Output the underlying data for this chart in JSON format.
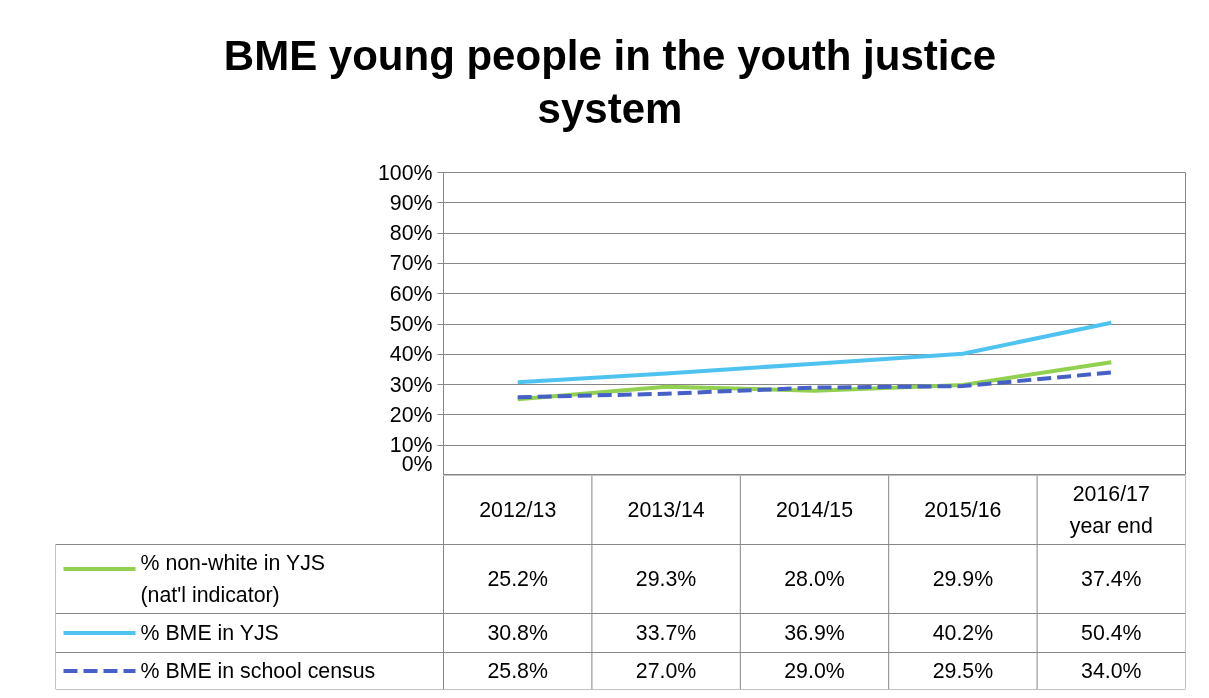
{
  "chart_data": {
    "type": "line",
    "title": "BME young people in the youth justice system",
    "categories": [
      "2012/13",
      "2013/14",
      "2014/15",
      "2015/16",
      "2016/17 year end"
    ],
    "ylim": [
      0,
      100
    ],
    "yticks": [
      {
        "value": 0,
        "label": "0%"
      },
      {
        "value": 10,
        "label": "10%"
      },
      {
        "value": 20,
        "label": "20%"
      },
      {
        "value": 30,
        "label": "30%"
      },
      {
        "value": 40,
        "label": "40%"
      },
      {
        "value": 50,
        "label": "50%"
      },
      {
        "value": 60,
        "label": "60%"
      },
      {
        "value": 70,
        "label": "70%"
      },
      {
        "value": 80,
        "label": "80%"
      },
      {
        "value": 90,
        "label": "90%"
      },
      {
        "value": 100,
        "label": "100%"
      }
    ],
    "grid": "y",
    "legend": "bottom",
    "marker": "none",
    "series": [
      {
        "name": "% non-white in YJS (nat'l indicator)",
        "color": "#92d050",
        "line_style": "solid",
        "values": [
          25.2,
          29.3,
          28.0,
          29.9,
          37.4
        ],
        "value_labels": [
          "25.2%",
          "29.3%",
          "28.0%",
          "29.9%",
          "37.4%"
        ]
      },
      {
        "name": "% BME in YJS",
        "color": "#4fc3ef",
        "line_style": "solid",
        "values": [
          30.8,
          33.7,
          36.9,
          40.2,
          50.4
        ],
        "value_labels": [
          "30.8%",
          "33.7%",
          "36.9%",
          "40.2%",
          "50.4%"
        ]
      },
      {
        "name": "% BME in school census",
        "color": "#4660c8",
        "line_style": "dashed",
        "values": [
          25.8,
          27.0,
          29.0,
          29.5,
          34.0
        ],
        "value_labels": [
          "25.8%",
          "27.0%",
          "29.0%",
          "29.5%",
          "34.0%"
        ]
      }
    ]
  }
}
